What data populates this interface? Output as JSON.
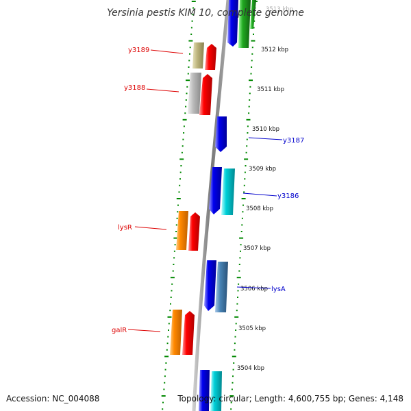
{
  "title": "Yersinia pestis KIM 10, complete genome",
  "accession": "Accession: NC_004088",
  "topology": "Topology: circular; Length: 4,600,755 bp; Genes: 4,148",
  "kbp_labels": [
    "3513 kbp",
    "3512 kbp",
    "3511 kbp",
    "3510 kbp",
    "3509 kbp",
    "3508 kbp",
    "3507 kbp",
    "3506 kbp",
    "3505 kbp",
    "3504 kbp"
  ],
  "left_gene_labels": [
    "y3189",
    "y3188",
    "lysR",
    "galR"
  ],
  "right_gene_labels": [
    "y3187",
    "y3186",
    "lysA"
  ],
  "colors": {
    "label_left": "#dd0000",
    "label_right": "#0000cc",
    "backbone": "#888888",
    "tick": "#008800",
    "red": "#ff0000",
    "blue": "#0000ee",
    "cyan": "#00d0d8",
    "orange": "#ff8800",
    "olive": "#bdb57e",
    "gray": "#bbbbbb",
    "steel": "#4682b4",
    "green": "#22aa22"
  }
}
